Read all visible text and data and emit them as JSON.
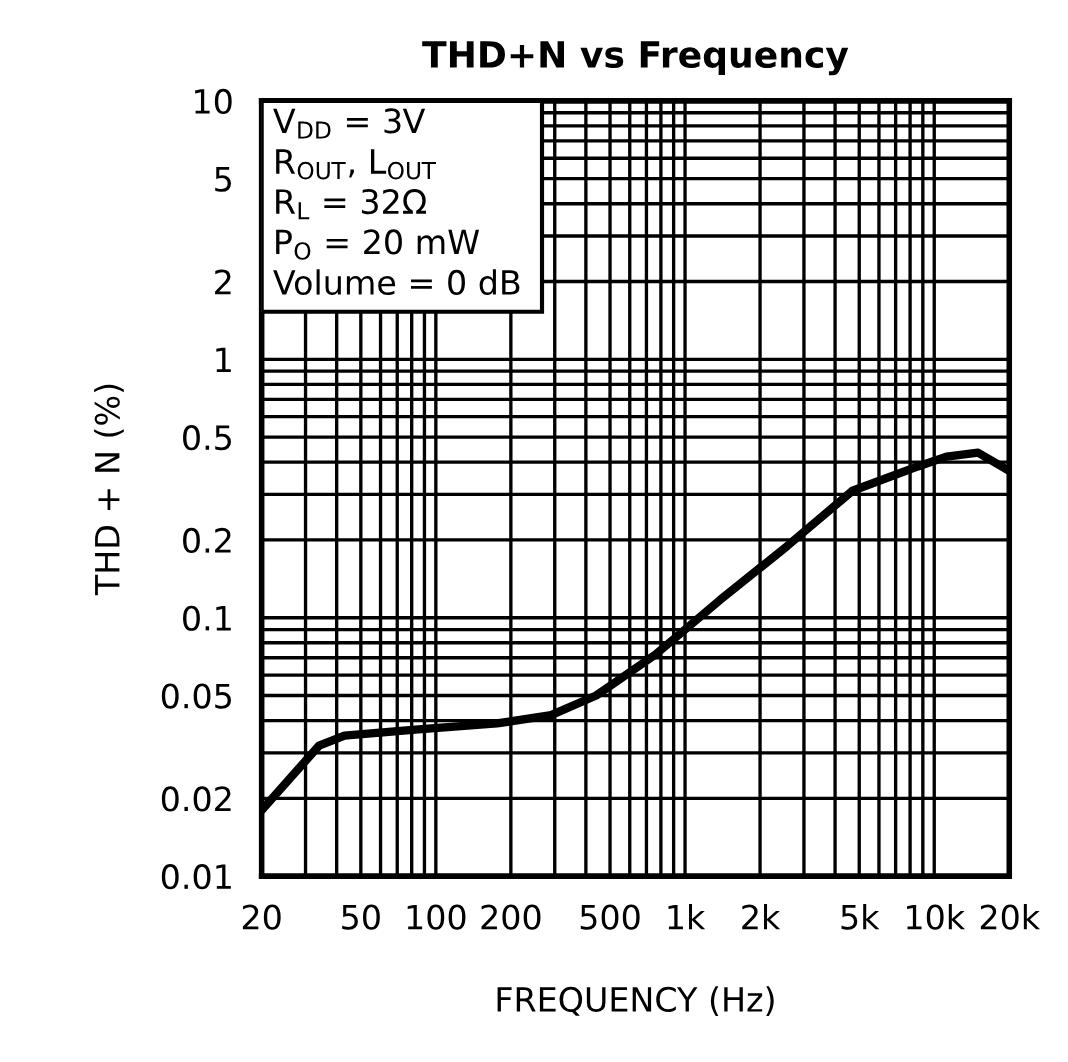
{
  "chart_data": {
    "type": "line",
    "title": "THD+N vs Frequency",
    "xlabel": "FREQUENCY (Hz)",
    "ylabel": "THD + N (%)",
    "log": "xy",
    "grid": true,
    "marker": "none",
    "line_style": "solid",
    "xlim": [
      20,
      20000
    ],
    "ylim": [
      0.01,
      10
    ],
    "xticks": [
      20,
      {
        "value": 30,
        "label": null
      },
      {
        "value": 40,
        "label": null
      },
      50,
      {
        "value": 60,
        "label": null
      },
      {
        "value": 70,
        "label": null
      },
      {
        "value": 80,
        "label": null
      },
      {
        "value": 90,
        "label": null
      },
      100,
      200,
      {
        "value": 300,
        "label": null
      },
      {
        "value": 400,
        "label": null
      },
      500,
      {
        "value": 600,
        "label": null
      },
      {
        "value": 700,
        "label": null
      },
      {
        "value": 800,
        "label": null
      },
      {
        "value": 900,
        "label": null
      },
      {
        "value": 1000,
        "label": "1k"
      },
      {
        "value": 2000,
        "label": "2k"
      },
      {
        "value": 3000,
        "label": null
      },
      {
        "value": 4000,
        "label": null
      },
      {
        "value": 5000,
        "label": "5k"
      },
      {
        "value": 6000,
        "label": null
      },
      {
        "value": 7000,
        "label": null
      },
      {
        "value": 8000,
        "label": null
      },
      {
        "value": 9000,
        "label": null
      },
      {
        "value": 10000,
        "label": "10k"
      },
      {
        "value": 20000,
        "label": "20k"
      }
    ],
    "yticks": [
      0.01,
      0.02,
      {
        "value": 0.03,
        "label": null
      },
      {
        "value": 0.04,
        "label": null
      },
      0.05,
      {
        "value": 0.06,
        "label": null
      },
      {
        "value": 0.07,
        "label": null
      },
      {
        "value": 0.08,
        "label": null
      },
      {
        "value": 0.09,
        "label": null
      },
      0.1,
      0.2,
      {
        "value": 0.3,
        "label": null
      },
      {
        "value": 0.4,
        "label": null
      },
      0.5,
      {
        "value": 0.6,
        "label": null
      },
      {
        "value": 0.7,
        "label": null
      },
      {
        "value": 0.8,
        "label": null
      },
      {
        "value": 0.9,
        "label": null
      },
      1,
      2,
      {
        "value": 3,
        "label": null
      },
      {
        "value": 4,
        "label": null
      },
      5,
      {
        "value": 6,
        "label": null
      },
      {
        "value": 7,
        "label": null
      },
      {
        "value": 8,
        "label": null
      },
      {
        "value": 9,
        "label": null
      },
      10
    ],
    "annotations": [
      "V$_{DD}$ = 3V",
      "R$_{OUT}$, L$_{OUT}$",
      "R$_{L}$ = 32Ω",
      "P$_{O}$ = 20 mW",
      "Volume = 0 dB"
    ],
    "series": [
      {
        "color": "#000000",
        "x": [
          20,
          34,
          43,
          85,
          176,
          290,
          440,
          760,
          1380,
          2580,
          4700,
          8600,
          11200,
          15000,
          20000
        ],
        "values": [
          0.018,
          0.032,
          0.035,
          0.037,
          0.039,
          0.042,
          0.05,
          0.072,
          0.117,
          0.19,
          0.31,
          0.385,
          0.42,
          0.435,
          0.37
        ]
      }
    ]
  }
}
